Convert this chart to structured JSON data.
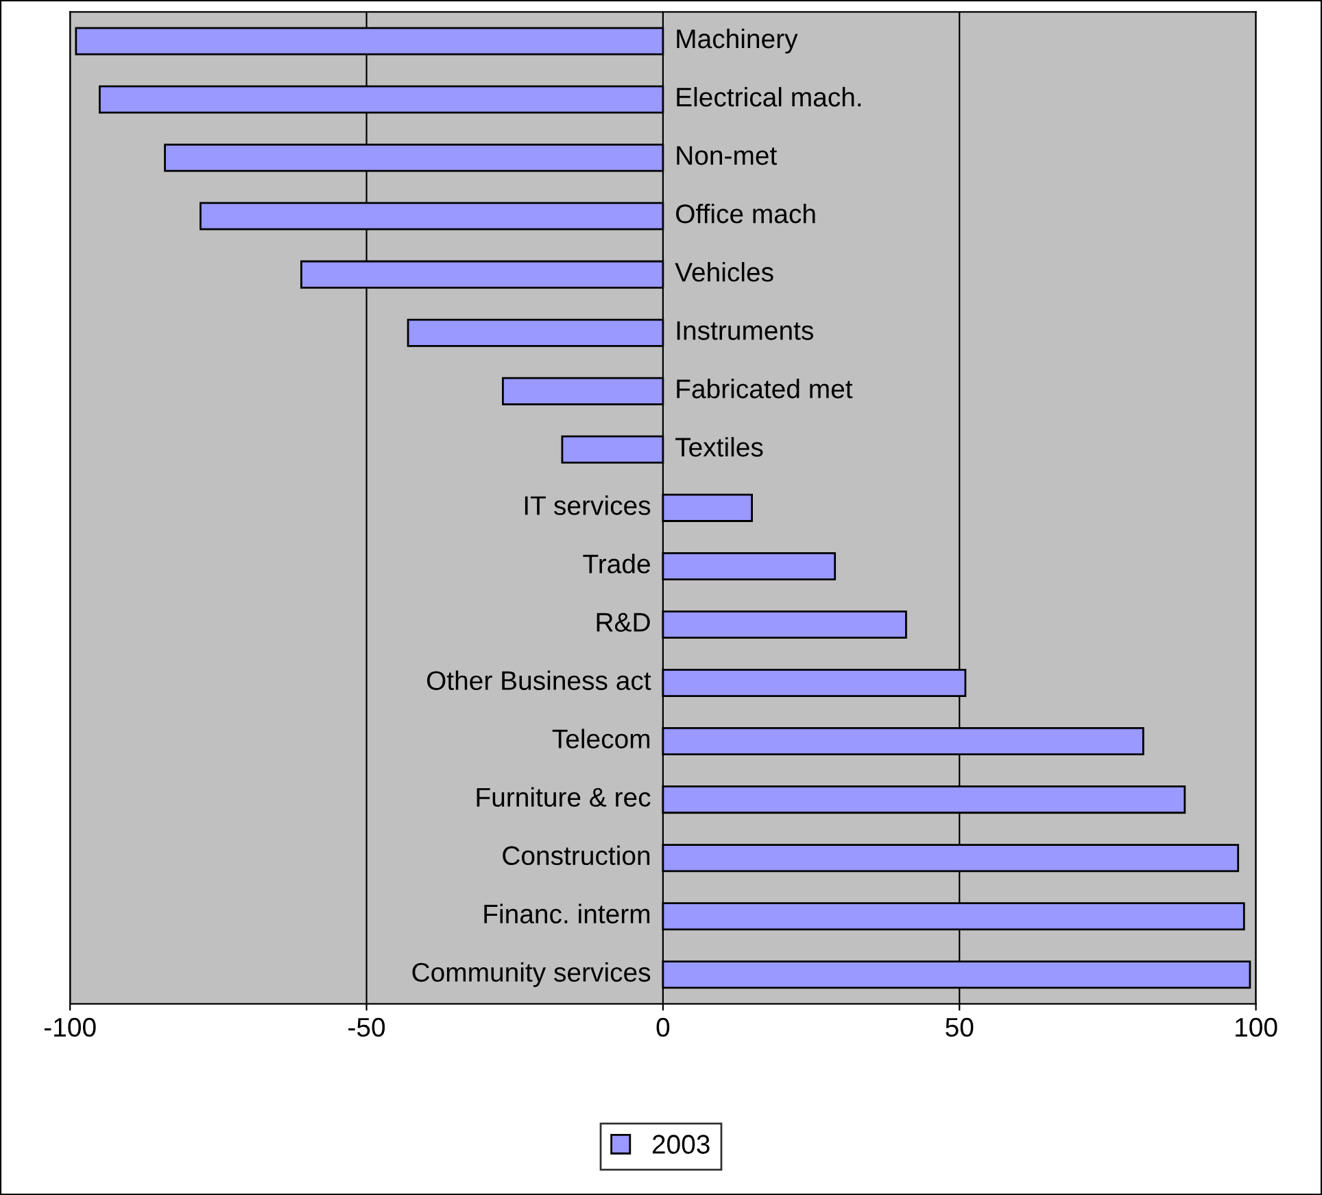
{
  "chart_data": {
    "type": "bar",
    "orientation": "horizontal",
    "categories": [
      "Machinery",
      "Electrical mach.",
      "Non-met",
      "Office mach",
      "Vehicles",
      "Instruments",
      "Fabricated met",
      "Textiles",
      "IT services",
      "Trade",
      "R&D",
      "Other Business act",
      "Telecom",
      "Furniture & rec",
      "Construction",
      "Financ. interm",
      "Community services"
    ],
    "series": [
      {
        "name": "2003",
        "color": "#9999ff",
        "values": [
          -99,
          -95,
          -84,
          -78,
          -61,
          -43,
          -27,
          -17,
          15,
          29,
          41,
          51,
          81,
          88,
          97,
          98,
          99
        ]
      }
    ],
    "xlim": [
      -100,
      100
    ],
    "xticks": [
      -100,
      -50,
      0,
      50,
      100
    ],
    "grid": "x",
    "legend": "bottom"
  }
}
